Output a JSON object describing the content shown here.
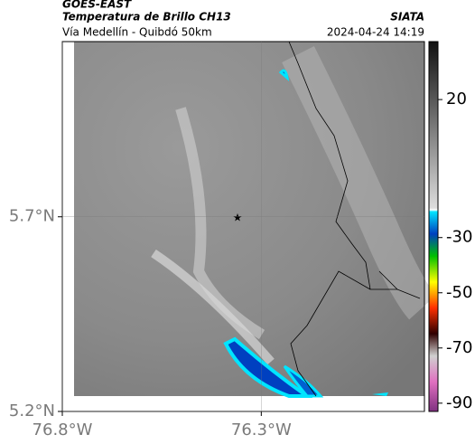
{
  "header": {
    "source": "GOES-EAST",
    "title": "Temperatura de Brillo CH13",
    "credit": "SIATA",
    "route": "Vía Medellín - Quibdó 50km",
    "timestamp": "2024-04-24 14:19"
  },
  "map": {
    "xlim": [
      -76.8,
      -75.89
    ],
    "ylim": [
      5.2,
      6.15
    ],
    "xticks": [
      {
        "value": -76.8,
        "label": "76.8°W"
      },
      {
        "value": -76.3,
        "label": "76.3°W"
      }
    ],
    "yticks": [
      {
        "value": 5.2,
        "label": "5.2°N"
      },
      {
        "value": 5.7,
        "label": "5.7°N"
      }
    ]
  },
  "colorbar": {
    "lim": [
      -93,
      41
    ],
    "ticks": [
      20,
      -30,
      -50,
      -70,
      -90
    ]
  }
}
